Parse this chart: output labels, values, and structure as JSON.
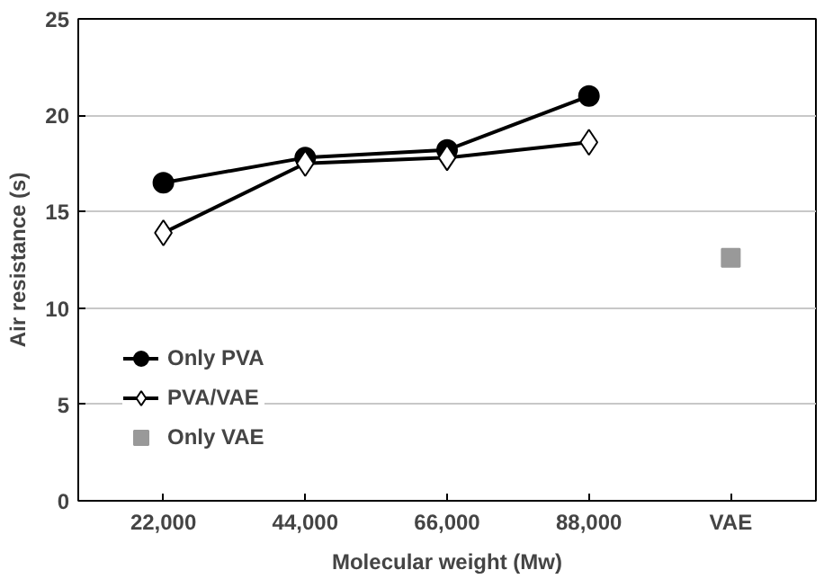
{
  "chart_data": {
    "type": "line",
    "xlabel": "Molecular weight (Mw)",
    "ylabel": "Air resistance (s)",
    "categories": [
      "22,000",
      "44,000",
      "66,000",
      "88,000",
      "VAE"
    ],
    "series": [
      {
        "name": "Only PVA",
        "color": "#000000",
        "marker": "circle",
        "values": [
          16.5,
          17.8,
          18.2,
          21.0,
          null
        ]
      },
      {
        "name": "PVA/VAE",
        "color": "#000000",
        "marker": "diamond",
        "values": [
          13.9,
          17.5,
          17.8,
          18.6,
          null
        ]
      },
      {
        "name": "Only VAE",
        "type": "scatter",
        "color": "#999999",
        "marker": "square",
        "x": [
          "VAE"
        ],
        "values": [
          12.6
        ]
      }
    ],
    "ylim": [
      0,
      25
    ],
    "yticks": [
      0,
      5,
      10,
      15,
      20,
      25
    ],
    "grid": "y",
    "legend": "bottom left"
  }
}
